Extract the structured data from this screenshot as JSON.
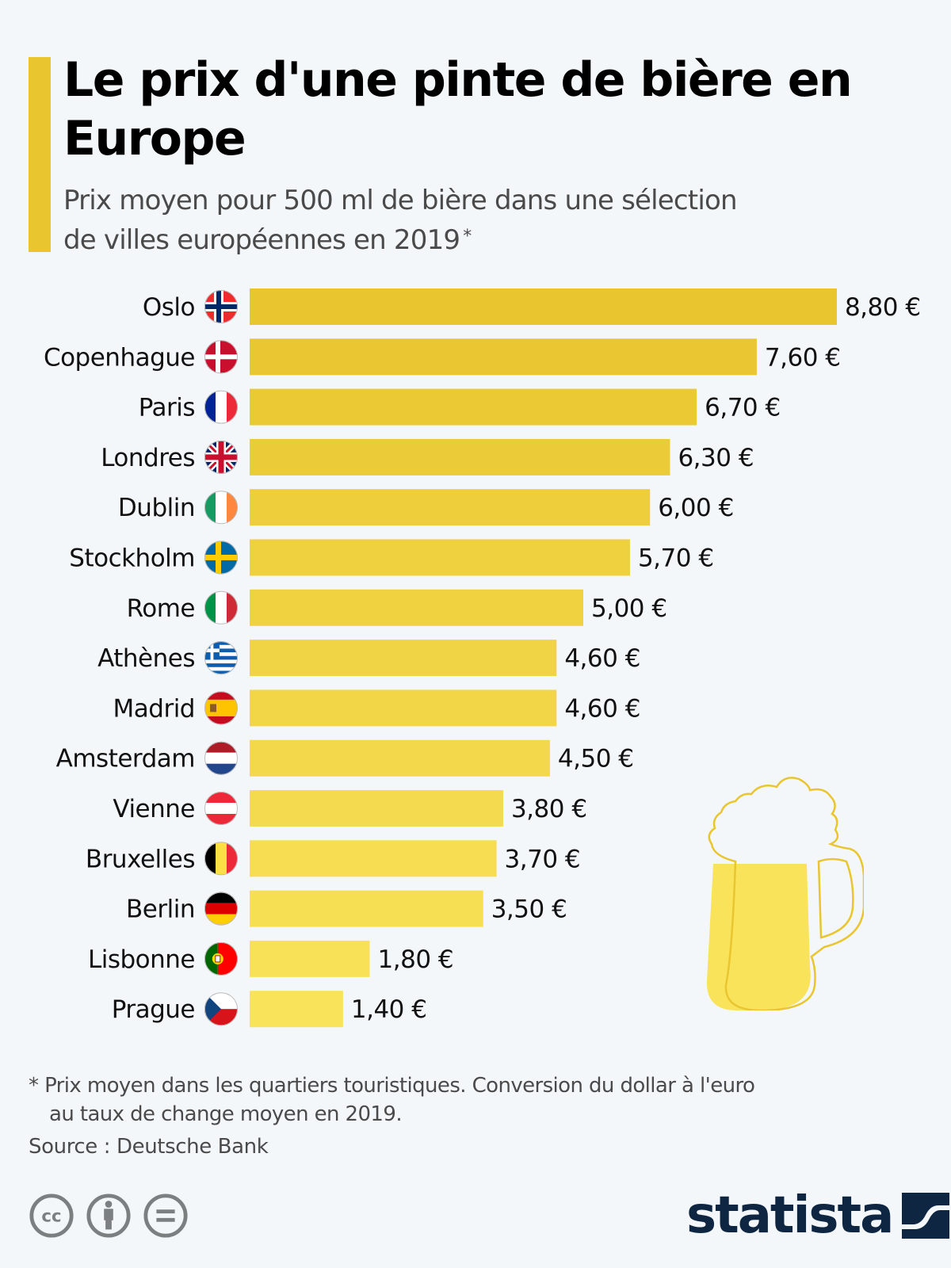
{
  "header": {
    "title": "Le prix d'une pinte de bière en Europe",
    "subtitle": "Prix moyen pour 500 ml de bière dans une sélection de villes européennes en 2019",
    "subtitle_marker": "*"
  },
  "colors": {
    "accent": "#E9C52F",
    "bar_top": "#E9C52F",
    "bar_bottom": "#F9E35A",
    "background": "#F4F7FA",
    "logo": "#0F2642"
  },
  "chart_data": {
    "type": "bar",
    "orientation": "horizontal",
    "title": "Le prix d'une pinte de bière en Europe",
    "subtitle": "Prix moyen pour 500 ml de bière dans une sélection de villes européennes en 2019 *",
    "xlabel": "",
    "ylabel": "",
    "unit": "€",
    "xlim": [
      0,
      8.8
    ],
    "grid": false,
    "legend": "none",
    "categories": [
      "Oslo",
      "Copenhague",
      "Paris",
      "Londres",
      "Dublin",
      "Stockholm",
      "Rome",
      "Athènes",
      "Madrid",
      "Amsterdam",
      "Vienne",
      "Bruxelles",
      "Berlin",
      "Lisbonne",
      "Prague"
    ],
    "values": [
      8.8,
      7.6,
      6.7,
      6.3,
      6.0,
      5.7,
      5.0,
      4.6,
      4.6,
      4.5,
      3.8,
      3.7,
      3.5,
      1.8,
      1.4
    ],
    "value_labels": [
      "8,80 €",
      "7,60 €",
      "6,70 €",
      "6,30 €",
      "6,00 €",
      "5,70 €",
      "5,00 €",
      "4,60 €",
      "4,60 €",
      "4,50 €",
      "3,80 €",
      "3,70 €",
      "3,50 €",
      "1,80 €",
      "1,40 €"
    ],
    "flags": [
      "norway-flag",
      "denmark-flag",
      "france-flag",
      "uk-flag",
      "ireland-flag",
      "sweden-flag",
      "italy-flag",
      "greece-flag",
      "spain-flag",
      "netherlands-flag",
      "austria-flag",
      "belgium-flag",
      "germany-flag",
      "portugal-flag",
      "czech-flag"
    ]
  },
  "decoration": {
    "icon": "beer-mug-icon"
  },
  "footer": {
    "note_line1": "* Prix moyen dans les quartiers touristiques. Conversion du dollar à l'euro",
    "note_line2": "au taux de change moyen en 2019.",
    "source": "Source : Deutsche Bank",
    "license_icons": [
      "cc-icon",
      "attribution-icon",
      "no-derivatives-icon"
    ],
    "logo_text": "statista"
  }
}
